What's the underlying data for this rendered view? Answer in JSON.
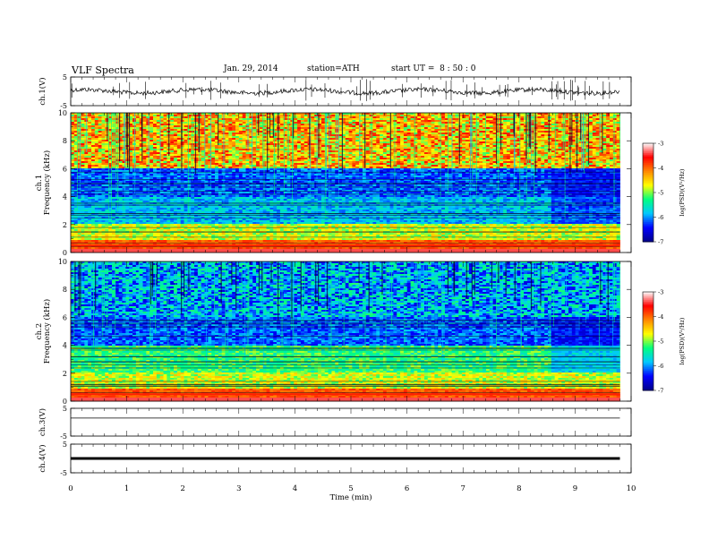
{
  "header": {
    "title": "VLF Spectra",
    "date": "Jan. 29, 2014",
    "station": "station=ATH",
    "start_ut": "start UT =  8 : 50 : 0"
  },
  "chart_data": {
    "type": "heatmap",
    "xlabel": "Time (min)",
    "xlim": [
      0,
      10
    ],
    "xticks": [
      "0",
      "1",
      "2",
      "3",
      "4",
      "5",
      "6",
      "7",
      "8",
      "9",
      "10"
    ],
    "panels": [
      {
        "id": "ch1-wave",
        "kind": "waveform",
        "ylabel": "ch.1(V)",
        "ylim": [
          -5,
          5
        ],
        "yticks": [
          "5",
          "-5"
        ],
        "level": 0
      },
      {
        "id": "ch1-spec",
        "kind": "spectrogram",
        "ylabel": [
          "ch.1",
          "Frequency (kHz)"
        ],
        "ylim": [
          0,
          10
        ],
        "yticks": [
          "0",
          "2",
          "4",
          "6",
          "8",
          "10"
        ]
      },
      {
        "id": "ch2-spec",
        "kind": "spectrogram",
        "ylabel": [
          "ch.2",
          "Frequency (kHz)"
        ],
        "ylim": [
          0,
          10
        ],
        "yticks": [
          "0",
          "2",
          "4",
          "6",
          "8",
          "10"
        ]
      },
      {
        "id": "ch3-wave",
        "kind": "waveform",
        "ylabel": "ch.3(V)",
        "ylim": [
          -5,
          5
        ],
        "yticks": [
          "5",
          "-5"
        ],
        "level": 1.5
      },
      {
        "id": "ch4-wave",
        "kind": "waveform",
        "ylabel": "ch.4(V)",
        "ylim": [
          -5,
          5
        ],
        "yticks": [
          "5",
          "-5"
        ],
        "level": 0
      }
    ],
    "colorbar": {
      "label": "log(PSD)(V²/Hz)",
      "range": [
        -7,
        -3
      ],
      "ticks": [
        "-3",
        "-4",
        "-5",
        "-6",
        "-7"
      ],
      "colors": [
        "#000088",
        "#0000ff",
        "#00c8ff",
        "#00ff80",
        "#ffff00",
        "#ff8800",
        "#ff0000",
        "#ffffff"
      ]
    },
    "spectrogram_end_min": 9.8
  }
}
